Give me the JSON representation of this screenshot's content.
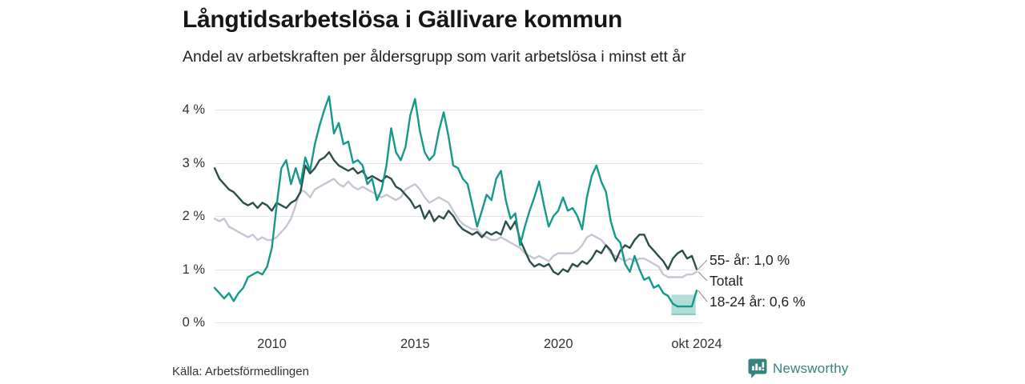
{
  "header": {
    "title": "Långtidsarbetslösa i Gällivare kommun",
    "subtitle": "Andel av arbetskraften per åldersgrupp som varit arbetslösa i minst ett år"
  },
  "footer": {
    "source": "Källa: Arbetsförmedlingen",
    "brand": "Newsworthy"
  },
  "colors": {
    "series_totalt": "#c7c5d4",
    "series_55": "#2b4e4a",
    "series_18_24": "#14998b",
    "band_fill": "#14998b",
    "band_edge": "#6cc2b4",
    "grid": "#e5e5e9",
    "connector": "#999999",
    "brand_teal": "#35837e",
    "text": "#222222"
  },
  "chart_data": {
    "type": "line",
    "title": "Långtidsarbetslösa i Gällivare kommun",
    "subtitle": "Andel av arbetskraften per åldersgrupp som varit arbetslösa i minst ett år",
    "unit": "%",
    "grid": true,
    "xlim": [
      2008.0,
      2024.833
    ],
    "ylim": [
      0,
      4.3
    ],
    "sample_interval": "2 months",
    "y_ticks": [
      {
        "label": "0 %",
        "value": 0
      },
      {
        "label": "1 %",
        "value": 1
      },
      {
        "label": "2 %",
        "value": 2
      },
      {
        "label": "3 %",
        "value": 3
      },
      {
        "label": "4 %",
        "value": 4
      }
    ],
    "x_ticks": [
      {
        "label": "2010",
        "value": 2010
      },
      {
        "label": "2015",
        "value": 2015
      },
      {
        "label": "2020",
        "value": 2020
      },
      {
        "label": "okt 2024",
        "value": 2024.833
      }
    ],
    "series": [
      {
        "name": "Totalt",
        "end_label": "Totalt",
        "color": "#c7c5d4",
        "last_value": 0.95,
        "values": [
          1.95,
          1.9,
          1.95,
          1.8,
          1.75,
          1.7,
          1.65,
          1.6,
          1.65,
          1.55,
          1.6,
          1.55,
          1.55,
          1.6,
          1.7,
          1.8,
          1.95,
          2.2,
          2.5,
          2.45,
          2.35,
          2.5,
          2.55,
          2.6,
          2.65,
          2.7,
          2.6,
          2.55,
          2.65,
          2.55,
          2.5,
          2.55,
          2.5,
          2.45,
          2.4,
          2.35,
          2.4,
          2.35,
          2.3,
          2.35,
          2.5,
          2.55,
          2.6,
          2.5,
          2.35,
          2.25,
          2.3,
          2.35,
          2.3,
          2.25,
          2.1,
          1.95,
          1.85,
          1.8,
          1.75,
          1.75,
          1.65,
          1.6,
          1.55,
          1.55,
          1.6,
          1.55,
          1.5,
          1.45,
          1.4,
          1.3,
          1.25,
          1.2,
          1.25,
          1.2,
          1.15,
          1.25,
          1.3,
          1.3,
          1.3,
          1.3,
          1.35,
          1.45,
          1.6,
          1.65,
          1.6,
          1.55,
          1.45,
          1.3,
          1.25,
          1.2,
          1.15,
          1.2,
          1.15,
          1.2,
          1.2,
          1.15,
          1.1,
          1.05,
          0.9,
          0.85,
          0.85,
          0.85,
          0.85,
          0.9,
          0.9,
          0.95
        ]
      },
      {
        "name": "55- år",
        "end_label": "55- år: 1,0 %",
        "color": "#2b4e4a",
        "last_value": 1.0,
        "values": [
          2.9,
          2.7,
          2.6,
          2.5,
          2.45,
          2.35,
          2.25,
          2.2,
          2.25,
          2.15,
          2.25,
          2.2,
          2.1,
          2.25,
          2.2,
          2.15,
          2.25,
          2.3,
          2.45,
          2.95,
          2.8,
          2.9,
          3.05,
          3.1,
          3.2,
          3.05,
          2.95,
          2.9,
          2.85,
          2.9,
          2.8,
          2.85,
          2.7,
          2.75,
          2.7,
          2.65,
          2.75,
          2.7,
          2.55,
          2.5,
          2.4,
          2.3,
          2.15,
          2.2,
          1.95,
          2.1,
          1.9,
          2.0,
          1.95,
          2.1,
          2.0,
          1.85,
          1.75,
          1.7,
          1.65,
          1.7,
          1.6,
          1.7,
          1.65,
          1.7,
          1.65,
          1.9,
          1.75,
          1.9,
          1.55,
          1.35,
          1.15,
          1.05,
          1.1,
          1.05,
          1.1,
          0.95,
          0.9,
          1.0,
          0.95,
          1.1,
          1.05,
          1.15,
          1.1,
          1.2,
          1.35,
          1.3,
          1.45,
          1.35,
          1.15,
          1.35,
          1.45,
          1.4,
          1.55,
          1.65,
          1.65,
          1.45,
          1.35,
          1.25,
          1.15,
          1.0,
          1.2,
          1.3,
          1.35,
          1.2,
          1.25,
          1.0
        ]
      },
      {
        "name": "18-24 år",
        "end_label": "18-24 år: 0,6 %",
        "color": "#14998b",
        "last_value": 0.6,
        "values": [
          0.65,
          0.55,
          0.45,
          0.55,
          0.4,
          0.55,
          0.65,
          0.85,
          0.9,
          0.95,
          0.9,
          1.05,
          1.4,
          2.2,
          2.9,
          3.05,
          2.6,
          2.9,
          2.6,
          3.1,
          2.85,
          3.35,
          3.7,
          4.0,
          4.25,
          3.55,
          3.75,
          3.35,
          3.4,
          3.0,
          3.05,
          2.95,
          2.6,
          2.7,
          2.3,
          2.5,
          2.95,
          3.65,
          3.2,
          3.05,
          3.3,
          3.9,
          4.2,
          3.6,
          3.2,
          3.05,
          3.15,
          3.6,
          3.95,
          3.5,
          2.95,
          2.9,
          2.7,
          2.6,
          2.2,
          1.8,
          2.1,
          2.4,
          2.3,
          2.7,
          2.85,
          2.3,
          1.95,
          2.05,
          1.45,
          1.8,
          2.1,
          2.35,
          2.65,
          2.2,
          1.8,
          2.0,
          2.1,
          2.35,
          2.1,
          2.15,
          2.0,
          1.75,
          2.35,
          2.75,
          2.95,
          2.65,
          2.45,
          1.9,
          1.6,
          1.5,
          1.1,
          0.95,
          1.25,
          1.0,
          0.8,
          0.85,
          0.65,
          0.7,
          0.55,
          0.5,
          0.35,
          0.3,
          0.3,
          0.3,
          0.3,
          0.6
        ]
      }
    ],
    "uncertainty_band": {
      "series": "18-24 år",
      "x_from": 2023.95,
      "x_to": 2024.8,
      "low": 0.15,
      "high": 0.52
    }
  }
}
